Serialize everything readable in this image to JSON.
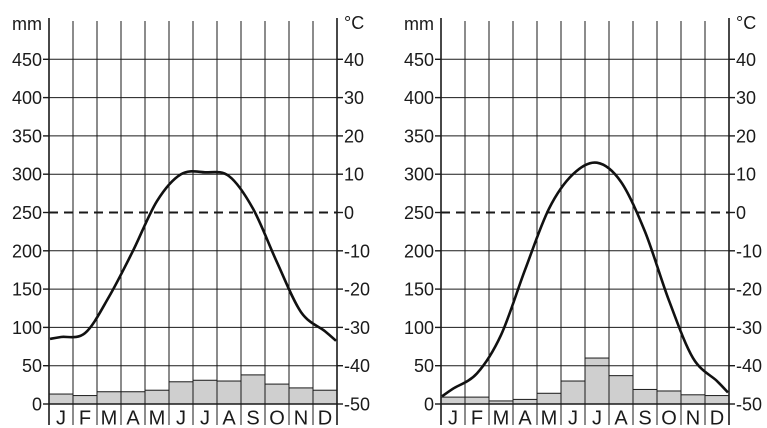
{
  "chart_data": [
    {
      "type": "bar",
      "title": "",
      "categories": [
        "J",
        "F",
        "M",
        "A",
        "M",
        "J",
        "J",
        "A",
        "S",
        "O",
        "N",
        "D"
      ],
      "left_axis": {
        "unit": "mm",
        "ticks": [
          "0",
          "50",
          "100",
          "150",
          "200",
          "250",
          "300",
          "350",
          "400",
          "450"
        ],
        "range": [
          0,
          500
        ]
      },
      "right_axis": {
        "unit": "°C",
        "ticks": [
          "-50",
          "-40",
          "-30",
          "-20",
          "-10",
          "0",
          "10",
          "20",
          "30",
          "40"
        ],
        "range": [
          -50,
          50
        ]
      },
      "series": [
        {
          "kind": "bar",
          "axis": "left",
          "values": [
            13,
            11,
            16,
            16,
            18,
            29,
            31,
            30,
            38,
            26,
            21,
            18
          ]
        },
        {
          "kind": "line",
          "axis": "right",
          "values": [
            -32.5,
            -31.5,
            -22,
            -10,
            3,
            10,
            10.5,
            9.5,
            1,
            -13,
            -26,
            -31
          ]
        }
      ],
      "reference_line": {
        "axis": "right",
        "value": 0,
        "style": "dashed"
      },
      "grid": true
    },
    {
      "type": "bar",
      "title": "",
      "categories": [
        "J",
        "F",
        "M",
        "A",
        "M",
        "J",
        "J",
        "A",
        "S",
        "O",
        "N",
        "D"
      ],
      "left_axis": {
        "unit": "mm",
        "ticks": [
          "0",
          "50",
          "100",
          "150",
          "200",
          "250",
          "300",
          "350",
          "400",
          "450"
        ],
        "range": [
          0,
          500
        ]
      },
      "right_axis": {
        "unit": "°C",
        "ticks": [
          "-50",
          "-40",
          "-30",
          "-20",
          "-10",
          "0",
          "10",
          "20",
          "30",
          "40"
        ],
        "range": [
          -50,
          50
        ]
      },
      "series": [
        {
          "kind": "bar",
          "axis": "left",
          "values": [
            9,
            9,
            4,
            6,
            14,
            30,
            60,
            37,
            19,
            17,
            12,
            11
          ]
        },
        {
          "kind": "line",
          "axis": "right",
          "values": [
            -46,
            -42,
            -32,
            -15,
            1,
            10,
            13,
            8,
            -5,
            -23,
            -38,
            -44
          ]
        }
      ],
      "reference_line": {
        "axis": "right",
        "value": 0,
        "style": "dashed"
      },
      "grid": true
    }
  ]
}
